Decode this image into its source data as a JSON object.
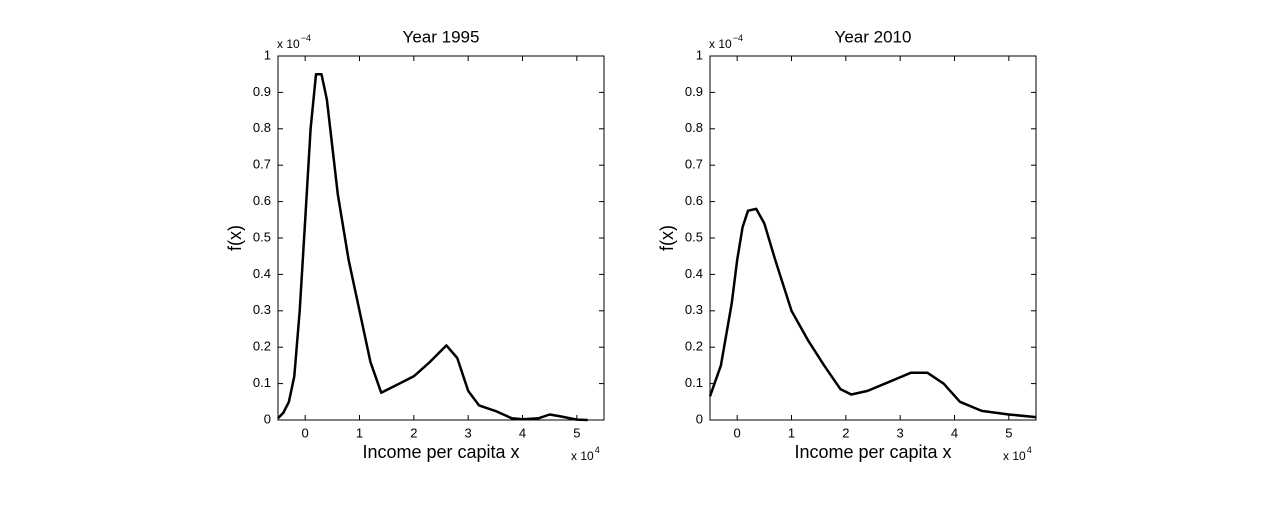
{
  "chart_data": [
    {
      "type": "line",
      "title": "Year 1995",
      "x_label": "Income per capita x",
      "y_label": "f(x)",
      "x_multiplier": {
        "base": "x 10",
        "exponent": "4"
      },
      "y_multiplier": {
        "base": "x 10",
        "exponent": "−4"
      },
      "xlim": [
        -0.5,
        5.5
      ],
      "xticks": [
        0,
        1,
        2,
        3,
        4,
        5
      ],
      "ylim": [
        0,
        1
      ],
      "yticks": [
        0,
        0.1,
        0.2,
        0.3,
        0.4,
        0.5,
        0.6,
        0.7,
        0.8,
        0.9,
        1
      ],
      "grid": false,
      "x": [
        -0.5,
        -0.4,
        -0.3,
        -0.2,
        -0.1,
        0,
        0.1,
        0.2,
        0.3,
        0.4,
        0.6,
        0.8,
        1.0,
        1.2,
        1.4,
        1.6,
        1.8,
        2.0,
        2.3,
        2.6,
        2.8,
        3.0,
        3.2,
        3.5,
        3.8,
        4.0,
        4.3,
        4.5,
        4.7,
        5.0,
        5.2
      ],
      "series": [
        {
          "name": "Year 1995",
          "color": "#000000",
          "values": [
            0.005,
            0.02,
            0.05,
            0.12,
            0.3,
            0.55,
            0.8,
            0.95,
            0.95,
            0.88,
            0.62,
            0.44,
            0.3,
            0.16,
            0.075,
            0.09,
            0.105,
            0.12,
            0.16,
            0.205,
            0.17,
            0.08,
            0.04,
            0.025,
            0.005,
            0.002,
            0.005,
            0.015,
            0.01,
            0.001,
            0
          ]
        }
      ]
    },
    {
      "type": "line",
      "title": "Year 2010",
      "x_label": "Income per capita x",
      "y_label": "f(x)",
      "x_multiplier": {
        "base": "x 10",
        "exponent": "4"
      },
      "y_multiplier": {
        "base": "x 10",
        "exponent": "−4"
      },
      "xlim": [
        -0.5,
        5.5
      ],
      "xticks": [
        0,
        1,
        2,
        3,
        4,
        5
      ],
      "ylim": [
        0,
        1
      ],
      "yticks": [
        0,
        0.1,
        0.2,
        0.3,
        0.4,
        0.5,
        0.6,
        0.7,
        0.8,
        0.9,
        1
      ],
      "grid": false,
      "x": [
        -0.5,
        -0.3,
        -0.1,
        0,
        0.1,
        0.2,
        0.35,
        0.5,
        0.7,
        1.0,
        1.3,
        1.6,
        1.9,
        2.1,
        2.4,
        2.8,
        3.2,
        3.5,
        3.8,
        4.1,
        4.5,
        5.0,
        5.5
      ],
      "series": [
        {
          "name": "Year 2010",
          "color": "#000000",
          "values": [
            0.065,
            0.15,
            0.32,
            0.44,
            0.53,
            0.575,
            0.58,
            0.54,
            0.44,
            0.3,
            0.22,
            0.15,
            0.085,
            0.07,
            0.08,
            0.105,
            0.13,
            0.13,
            0.1,
            0.05,
            0.025,
            0.015,
            0.008
          ]
        }
      ]
    }
  ]
}
